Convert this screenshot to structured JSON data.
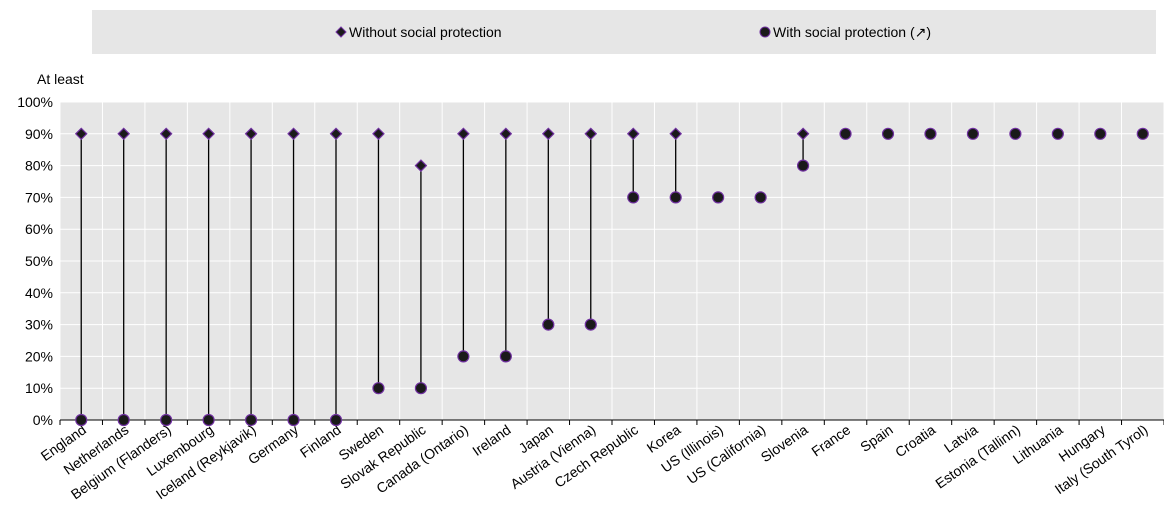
{
  "chart_data": {
    "type": "dot-range",
    "ylabel": "At least",
    "ylim": [
      0,
      100
    ],
    "yticks": [
      "0%",
      "10%",
      "20%",
      "30%",
      "40%",
      "50%",
      "60%",
      "70%",
      "80%",
      "90%",
      "100%"
    ],
    "legend": {
      "placement": "top",
      "items": [
        {
          "label": "Without social protection",
          "marker": "diamond"
        },
        {
          "label": "With social protection (↗)",
          "marker": "circle"
        }
      ]
    },
    "categories": [
      "England",
      "Netherlands",
      "Belgium (Flanders)",
      "Luxembourg",
      "Iceland (Reykjavik)",
      "Germany",
      "Finland",
      "Sweden",
      "Slovak Republic",
      "Canada (Ontario)",
      "Ireland",
      "Japan",
      "Austria (Vienna)",
      "Czech Republic",
      "Korea",
      "US (Illinois)",
      "US (California)",
      "Slovenia",
      "France",
      "Spain",
      "Croatia",
      "Latvia",
      "Estonia (Tallinn)",
      "Lithuania",
      "Hungary",
      "Italy (South Tyrol)"
    ],
    "series": [
      {
        "name": "Without social protection",
        "marker": "diamond",
        "values": [
          90,
          90,
          90,
          90,
          90,
          90,
          90,
          90,
          80,
          90,
          90,
          90,
          90,
          90,
          90,
          null,
          null,
          90,
          null,
          null,
          null,
          null,
          null,
          null,
          null,
          null
        ]
      },
      {
        "name": "With social protection (↗)",
        "marker": "circle",
        "values": [
          0,
          0,
          0,
          0,
          0,
          0,
          0,
          10,
          10,
          20,
          20,
          30,
          30,
          70,
          70,
          70,
          70,
          80,
          90,
          90,
          90,
          90,
          90,
          90,
          90,
          90
        ]
      }
    ],
    "grid": true
  },
  "colors": {
    "plot_background": "#e6e6e6",
    "legend_background": "#e6e6e6",
    "marker_fill": "#1a1a1a",
    "marker_stroke": "#7030a0",
    "connector": "#000000",
    "gridline": "#ffffff"
  }
}
